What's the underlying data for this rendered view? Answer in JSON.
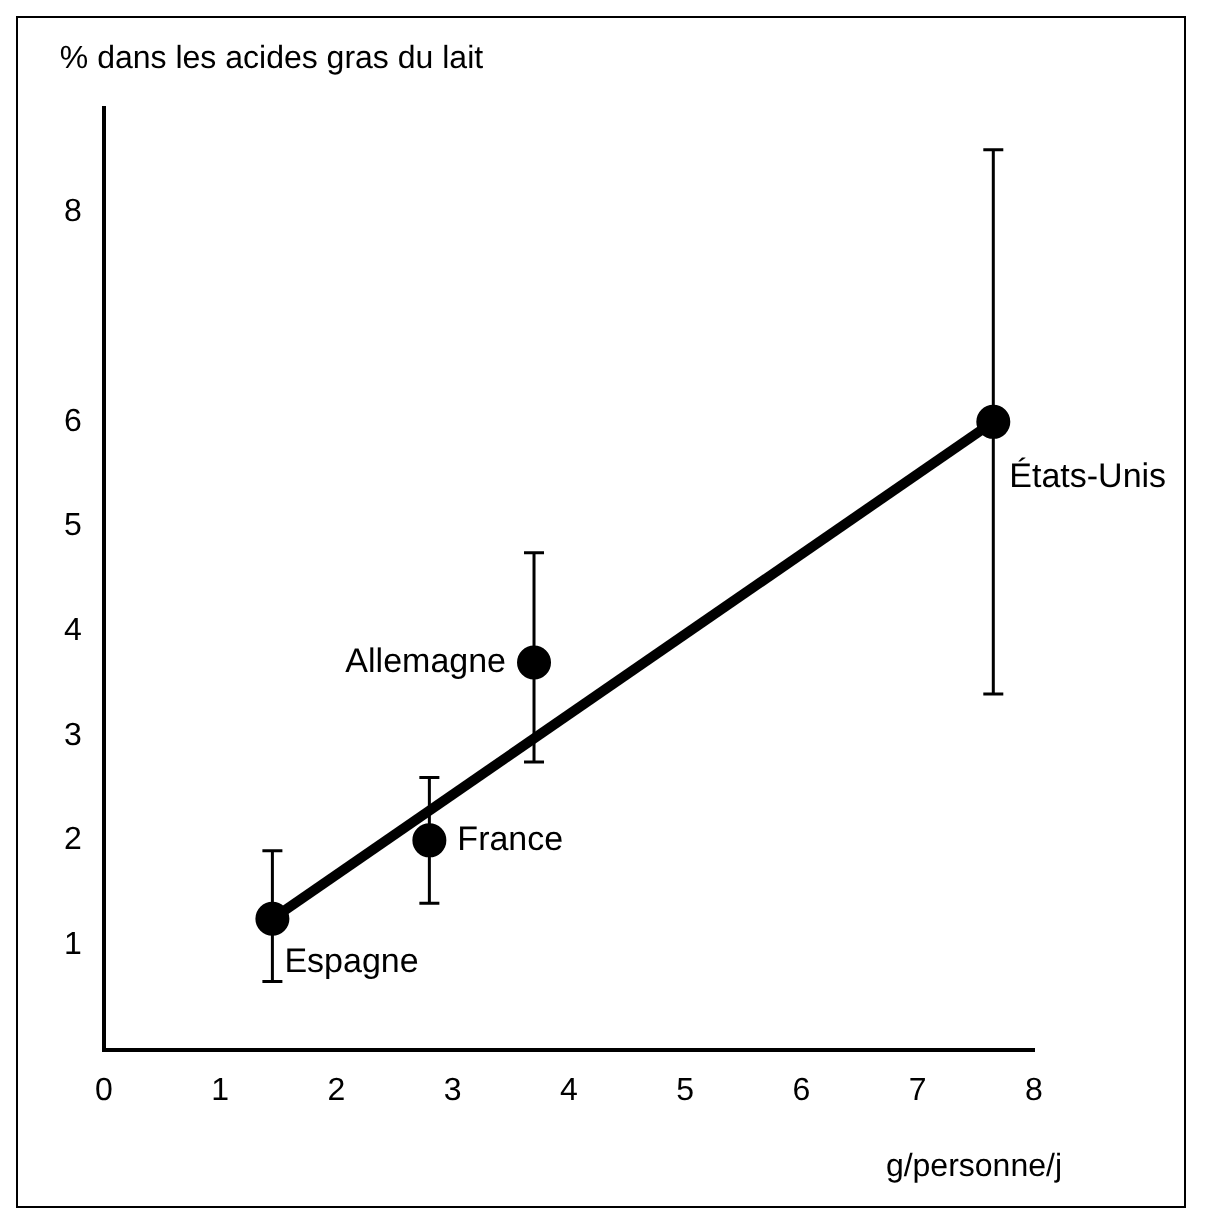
{
  "chart_data": {
    "type": "scatter",
    "xlabel": "g/personne/j",
    "ylabel": "% dans les acides gras du lait",
    "x": [
      1.45,
      2.8,
      3.7,
      7.65
    ],
    "series": [
      {
        "color": "#000000",
        "values": [
          1.25,
          2.0,
          3.7,
          6.0
        ],
        "errors": [
          [
            0.65,
            1.9
          ],
          [
            1.4,
            2.6
          ],
          [
            2.75,
            4.75
          ],
          [
            3.4,
            8.6
          ]
        ],
        "marker": "circle"
      },
      {
        "type": "line",
        "color": "#000000",
        "x": [
          1.45,
          7.65
        ],
        "values": [
          1.25,
          6.0
        ],
        "marker": "none",
        "line_style": "solid"
      }
    ],
    "annotations": [
      {
        "text": "Espagne",
        "x": 1.45,
        "y": 1.25
      },
      {
        "text": "France",
        "x": 2.8,
        "y": 2.0
      },
      {
        "text": "Allemagne",
        "x": 3.7,
        "y": 3.7
      },
      {
        "text": "États-Unis",
        "x": 7.65,
        "y": 6.0
      }
    ],
    "xlim": [
      0,
      8
    ],
    "xticks": [
      0,
      1,
      2,
      3,
      4,
      5,
      6,
      7,
      8
    ],
    "ylim": [
      0,
      9
    ],
    "yticks": [
      1,
      2,
      3,
      4,
      5,
      6,
      8
    ],
    "grid": false,
    "legend": false
  }
}
